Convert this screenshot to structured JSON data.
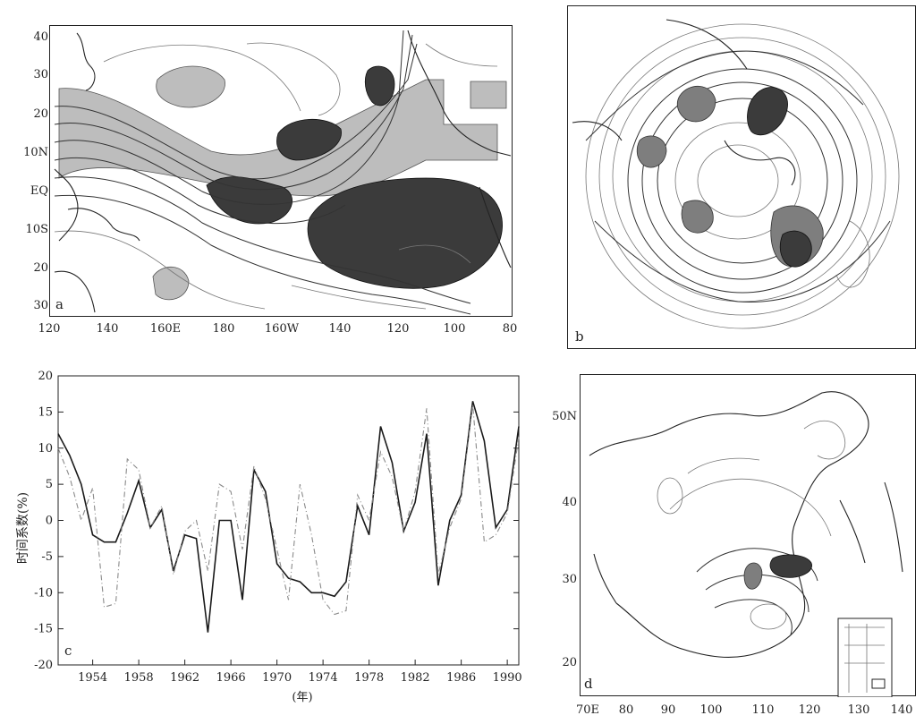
{
  "panels": {
    "a": {
      "letter": "a",
      "y_ticks": [
        "40",
        "30",
        "20",
        "10N",
        "EQ",
        "10S",
        "20",
        "30"
      ],
      "x_ticks": [
        "120",
        "140",
        "160E",
        "180",
        "160W",
        "140",
        "120",
        "100",
        "80"
      ]
    },
    "b": {
      "letter": "b"
    },
    "c": {
      "letter": "c"
    },
    "d": {
      "letter": "d",
      "y_ticks": [
        "50N",
        "40",
        "30",
        "20"
      ],
      "x_ticks": [
        "70E",
        "80",
        "90",
        "100",
        "110",
        "120",
        "130",
        "140"
      ]
    }
  },
  "chart_data": {
    "type": "line",
    "title": "",
    "xlabel": "(年)",
    "ylabel": "时间系数(%)",
    "xlim": [
      1951,
      1991
    ],
    "ylim": [
      -20,
      20
    ],
    "x_tick_labels": [
      "1954",
      "1958",
      "1962",
      "1966",
      "1970",
      "1974",
      "1978",
      "1982",
      "1986",
      "1990"
    ],
    "y_tick_labels": [
      "20",
      "15",
      "10",
      "5",
      "0",
      "-5",
      "-10",
      "-15",
      "-20"
    ],
    "x": [
      1951,
      1952,
      1953,
      1954,
      1955,
      1956,
      1957,
      1958,
      1959,
      1960,
      1961,
      1962,
      1963,
      1964,
      1965,
      1966,
      1967,
      1968,
      1969,
      1970,
      1971,
      1972,
      1973,
      1974,
      1975,
      1976,
      1977,
      1978,
      1979,
      1980,
      1981,
      1982,
      1983,
      1984,
      1985,
      1986,
      1987,
      1988,
      1989,
      1990,
      1991
    ],
    "series": [
      {
        "style": "solid",
        "color": "#1a1a1a",
        "values": [
          12,
          9,
          5,
          -2,
          -3,
          -3,
          1,
          5.5,
          -1,
          1.5,
          -7,
          -2,
          -2.5,
          -15.5,
          0,
          0,
          -11,
          7,
          4,
          -6,
          -8,
          -8.5,
          -10,
          -10,
          -10.5,
          -8.5,
          2,
          -2,
          13,
          8,
          -1.5,
          2.5,
          12,
          -9,
          0,
          3.5,
          16.5,
          11,
          -1,
          1.5,
          13
        ]
      },
      {
        "style": "dashdot",
        "color": "#8a8a8a",
        "values": [
          10,
          6,
          0,
          4.5,
          -12,
          -11.5,
          8.5,
          7,
          -1,
          2,
          -7.5,
          -1.5,
          0,
          -7,
          5,
          4,
          -4,
          7.5,
          3,
          -4,
          -11,
          5,
          -2,
          -11,
          -13,
          -12.5,
          3.5,
          0,
          9.5,
          6,
          -1.5,
          4,
          15.5,
          -7.5,
          -1,
          3,
          16,
          -3,
          -2,
          1,
          11.5
        ]
      }
    ]
  }
}
